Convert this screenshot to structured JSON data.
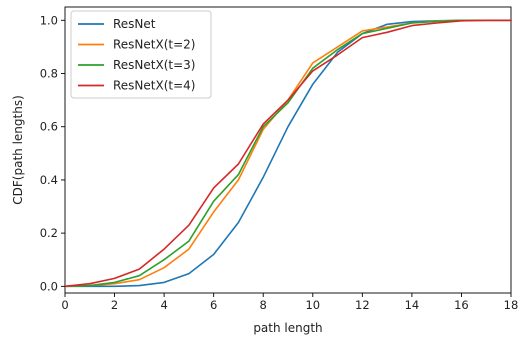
{
  "chart_data": {
    "type": "line",
    "title": "",
    "xlabel": "path length",
    "ylabel": "CDF(path lengths)",
    "xlim": [
      0,
      18
    ],
    "ylim": [
      -0.025,
      1.05
    ],
    "x_ticks": [
      0,
      2,
      4,
      6,
      8,
      10,
      12,
      14,
      16,
      18
    ],
    "x_tick_labels": [
      "0",
      "2",
      "4",
      "6",
      "8",
      "10",
      "12",
      "14",
      "16",
      "18"
    ],
    "y_ticks": [
      0.0,
      0.2,
      0.4,
      0.6,
      0.8,
      1.0
    ],
    "y_tick_labels": [
      "0.0",
      "0.2",
      "0.4",
      "0.6",
      "0.8",
      "1.0"
    ],
    "grid": false,
    "legend_position": "top-left",
    "x": [
      0,
      1,
      2,
      3,
      4,
      5,
      6,
      7,
      8,
      9,
      10,
      11,
      12,
      13,
      14,
      15,
      16,
      17,
      18
    ],
    "series": [
      {
        "name": "ResNet",
        "color": "#1f77b4",
        "values": [
          0.0,
          0.0,
          0.0,
          0.003,
          0.015,
          0.048,
          0.12,
          0.24,
          0.41,
          0.6,
          0.76,
          0.88,
          0.95,
          0.985,
          0.995,
          0.998,
          1.0,
          1.0,
          1.0
        ]
      },
      {
        "name": "ResNetX(t=2)",
        "color": "#ff7f0e",
        "values": [
          0.0,
          0.003,
          0.01,
          0.025,
          0.07,
          0.14,
          0.28,
          0.4,
          0.59,
          0.7,
          0.84,
          0.9,
          0.96,
          0.975,
          0.99,
          0.997,
          1.0,
          1.0,
          1.0
        ]
      },
      {
        "name": "ResNetX(t=3)",
        "color": "#2ca02c",
        "values": [
          0.0,
          0.003,
          0.015,
          0.04,
          0.1,
          0.17,
          0.32,
          0.42,
          0.6,
          0.69,
          0.82,
          0.89,
          0.95,
          0.97,
          0.99,
          0.996,
          1.0,
          1.0,
          1.0
        ]
      },
      {
        "name": "ResNetX(t=4)",
        "color": "#d62728",
        "values": [
          0.0,
          0.01,
          0.03,
          0.065,
          0.14,
          0.23,
          0.37,
          0.46,
          0.61,
          0.7,
          0.81,
          0.87,
          0.935,
          0.955,
          0.98,
          0.99,
          0.998,
          1.0,
          1.0
        ]
      }
    ]
  }
}
